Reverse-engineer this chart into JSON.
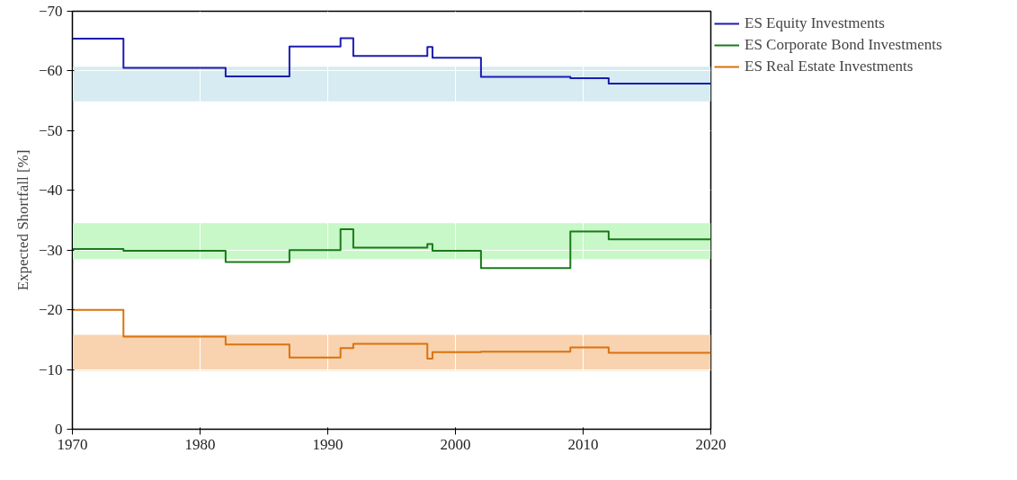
{
  "chart_data": {
    "type": "step",
    "ylabel": "Expected Shortfall [%]",
    "x": [
      1970,
      1974,
      1982,
      1987,
      1991,
      1992,
      1997.8,
      1998.2,
      2002,
      2009,
      2012,
      2020
    ],
    "series": [
      {
        "name": "ES Equity Investments",
        "color": "#1c1cb0",
        "values": [
          -65.4,
          -60.5,
          -59.1,
          -64.1,
          -65.5,
          -62.5,
          -64,
          -62.2,
          -59,
          -58.8,
          -57.9,
          -57.9
        ]
      },
      {
        "name": "ES Corporate Bond Investments",
        "color": "#1a7a1a",
        "values": [
          -30.2,
          -29.9,
          -28,
          -30,
          -33.5,
          -30.4,
          -31,
          -29.9,
          -27,
          -33.1,
          -31.8,
          -31.8
        ]
      },
      {
        "name": "ES Real Estate Investments",
        "color": "#d9730d",
        "values": [
          -20,
          -15.5,
          -14.2,
          -12,
          -13.6,
          -14.3,
          -11.8,
          -12.9,
          -13,
          -13.7,
          -12.8,
          -12.8
        ]
      }
    ],
    "bands": [
      {
        "axis": "y",
        "from": -54.9,
        "to": -60.7,
        "color": "#d6ebf2"
      },
      {
        "axis": "y",
        "from": -28.5,
        "to": -34.5,
        "color": "#c8f7c8"
      },
      {
        "axis": "y",
        "from": -9.8,
        "to": -15.8,
        "color": "#f9d3b0"
      }
    ],
    "xlim": [
      1970,
      2020
    ],
    "xticks": [
      1970,
      1980,
      1990,
      2000,
      2010,
      2020
    ],
    "ylim": [
      0,
      -70
    ],
    "yticks": [
      {
        "value": 0,
        "label": "0"
      },
      {
        "value": -10,
        "label": "−10"
      },
      {
        "value": -20,
        "label": "−20"
      },
      {
        "value": -30,
        "label": "−30"
      },
      {
        "value": -40,
        "label": "−40"
      },
      {
        "value": -50,
        "label": "−50"
      },
      {
        "value": -60,
        "label": "−60"
      },
      {
        "value": -70,
        "label": "−70"
      }
    ],
    "grid": true,
    "legend": "top right",
    "line_style": "solid"
  }
}
